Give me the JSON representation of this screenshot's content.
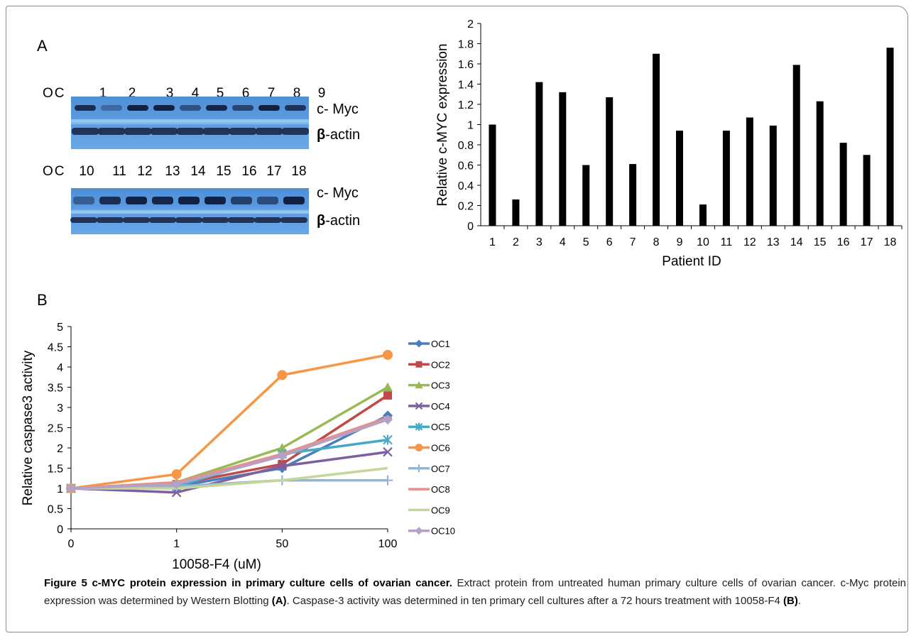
{
  "panels": {
    "a": "A",
    "b": "B"
  },
  "blots": [
    {
      "oc": "OC",
      "lanes": [
        "1",
        "2",
        "3",
        "4",
        "5",
        "6",
        "7",
        "8",
        "9"
      ],
      "label_myc": "c- Myc",
      "label_beta_symbol": "β",
      "label_beta_rest": "-actin"
    },
    {
      "oc": "OC",
      "lanes": [
        "10",
        "11",
        "12",
        "13",
        "14",
        "15",
        "16",
        "17",
        "18"
      ],
      "label_myc": "c- Myc",
      "label_beta_symbol": "β",
      "label_beta_rest": "-actin"
    }
  ],
  "chart_data": [
    {
      "type": "bar",
      "categories": [
        "1",
        "2",
        "3",
        "4",
        "5",
        "6",
        "7",
        "8",
        "9",
        "10",
        "11",
        "12",
        "13",
        "14",
        "15",
        "16",
        "17",
        "18"
      ],
      "values": [
        1.0,
        0.26,
        1.42,
        1.32,
        0.6,
        1.27,
        0.61,
        1.7,
        0.94,
        0.21,
        0.94,
        1.07,
        0.99,
        1.59,
        1.23,
        0.82,
        0.7,
        1.76
      ],
      "xlabel": "Patient ID",
      "ylabel": "Relative c-MYC expression",
      "ylim": [
        0,
        2
      ],
      "yticks": [
        "0",
        "0.2",
        "0.4",
        "0.6",
        "0.8",
        "1",
        "1.2",
        "1.4",
        "1.6",
        "1.8",
        "2"
      ],
      "color": "#000000",
      "grid": false
    },
    {
      "type": "line",
      "x": [
        "0",
        "1",
        "50",
        "100"
      ],
      "xlabel": "10058-F4 (uM)",
      "ylabel": "Relative caspase3 activity",
      "ylim": [
        0,
        5
      ],
      "yticks": [
        "0",
        "0.5",
        "1",
        "1.5",
        "2",
        "2.5",
        "3",
        "3.5",
        "4",
        "4.5",
        "5"
      ],
      "grid": false,
      "legend": "right",
      "series": [
        {
          "name": "OC1",
          "values": [
            1,
            1.05,
            1.5,
            2.8
          ],
          "color": "#4A7EBB",
          "marker": "diamond"
        },
        {
          "name": "OC2",
          "values": [
            1,
            1.1,
            1.6,
            3.3
          ],
          "color": "#BE4B48",
          "marker": "square"
        },
        {
          "name": "OC3",
          "values": [
            1,
            1.15,
            2.0,
            3.5
          ],
          "color": "#98B954",
          "marker": "triangle"
        },
        {
          "name": "OC4",
          "values": [
            1,
            0.9,
            1.55,
            1.9
          ],
          "color": "#7D60A0",
          "marker": "x"
        },
        {
          "name": "OC5",
          "values": [
            1,
            1.05,
            1.85,
            2.2
          ],
          "color": "#46AAC5",
          "marker": "star"
        },
        {
          "name": "OC6",
          "values": [
            1,
            1.35,
            3.8,
            4.3
          ],
          "color": "#F79646",
          "marker": "circle"
        },
        {
          "name": "OC7",
          "values": [
            1,
            1.05,
            1.2,
            1.2
          ],
          "color": "#95B3D7",
          "marker": "plus"
        },
        {
          "name": "OC8",
          "values": [
            1,
            1.15,
            1.85,
            2.75
          ],
          "color": "#E6908E",
          "marker": "dash"
        },
        {
          "name": "OC9",
          "values": [
            1,
            1.0,
            1.2,
            1.5
          ],
          "color": "#C3D69B",
          "marker": "none"
        },
        {
          "name": "OC10",
          "values": [
            1,
            1.1,
            1.8,
            2.7
          ],
          "color": "#B3A2C7",
          "marker": "diamond"
        }
      ]
    }
  ],
  "caption": {
    "title": "Figure 5 c-MYC protein expression in primary culture cells of ovarian cancer.",
    "text1": " Extract protein from untreated human primary culture cells of ovarian cancer. c-Myc protein expression was determined by Western Blotting ",
    "ref_a": "(A)",
    "text2": ". Caspase-3 activity was determined in ten primary cell cultures after a 72 hours treatment with 10058-F4 ",
    "ref_b": "(B)",
    "text3": "."
  }
}
